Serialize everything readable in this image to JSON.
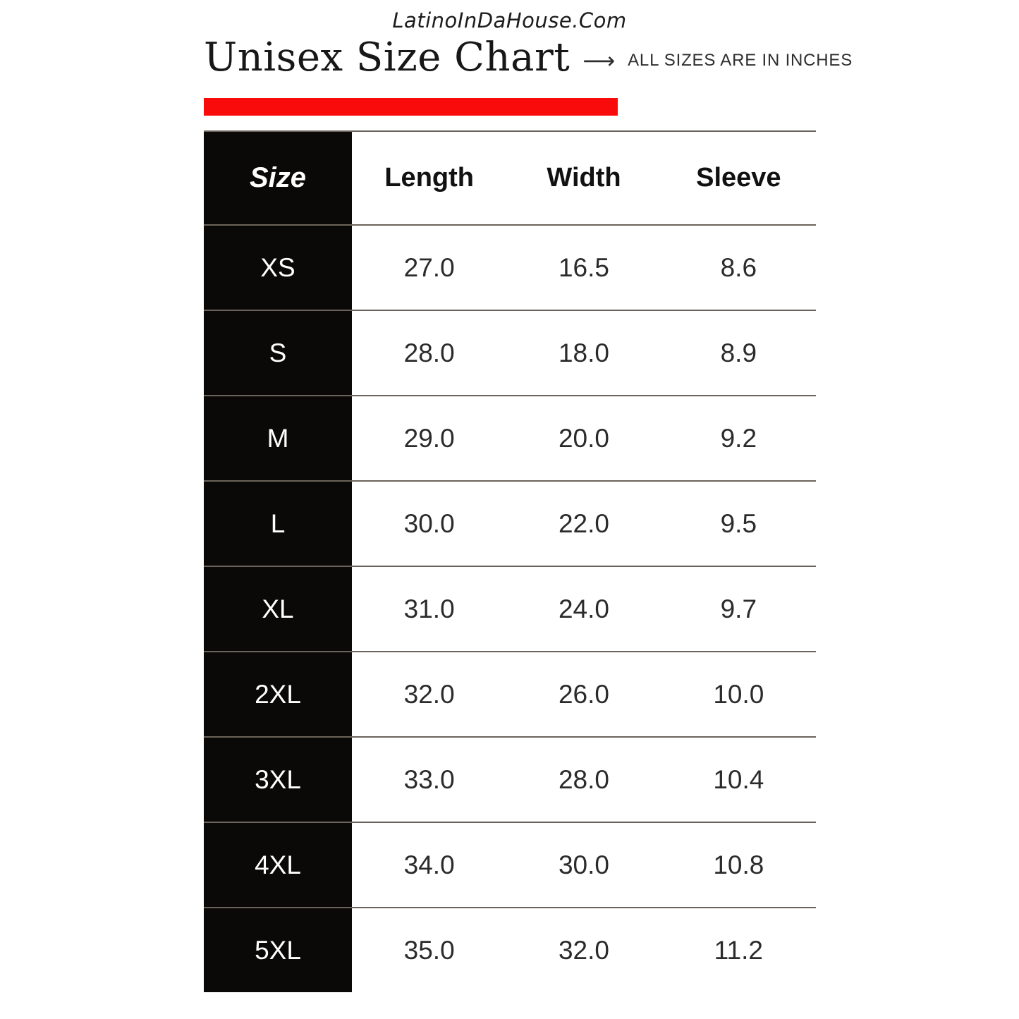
{
  "site": {
    "url_text": "LatinoInDaHouse.Com"
  },
  "header": {
    "title": "Unisex Size Chart",
    "arrow_glyph": "⟶",
    "subtitle": "ALL SIZES ARE IN INCHES"
  },
  "colors": {
    "accent_red": "#f90b0b",
    "row_line": "#6a635b",
    "cell_black": "#0a0908"
  },
  "chart_data": {
    "type": "table",
    "title": "Unisex Size Chart",
    "note": "ALL SIZES ARE IN INCHES",
    "unit": "inches",
    "columns": [
      "Size",
      "Length",
      "Width",
      "Sleeve"
    ],
    "rows": [
      [
        "XS",
        "27.0",
        "16.5",
        "8.6"
      ],
      [
        "S",
        "28.0",
        "18.0",
        "8.9"
      ],
      [
        "M",
        "29.0",
        "20.0",
        "9.2"
      ],
      [
        "L",
        "30.0",
        "22.0",
        "9.5"
      ],
      [
        "XL",
        "31.0",
        "24.0",
        "9.7"
      ],
      [
        "2XL",
        "32.0",
        "26.0",
        "10.0"
      ],
      [
        "3XL",
        "33.0",
        "28.0",
        "10.4"
      ],
      [
        "4XL",
        "34.0",
        "30.0",
        "10.8"
      ],
      [
        "5XL",
        "35.0",
        "32.0",
        "11.2"
      ]
    ]
  }
}
